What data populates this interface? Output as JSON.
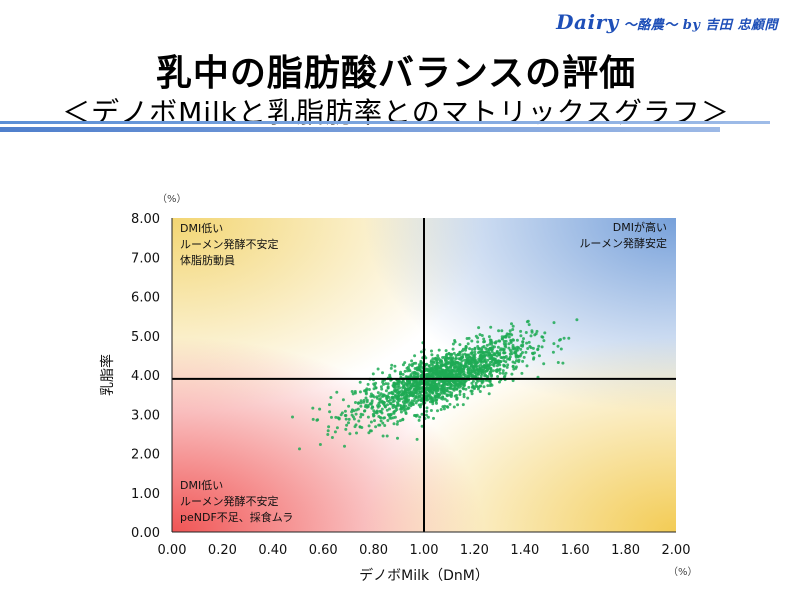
{
  "brand": {
    "main": "Dairy",
    "sub": "〜酪農〜 by 吉田 忠顧問"
  },
  "title": "乳中の脂肪酸バランスの評価",
  "subtitle": "＜デノボMilkと乳脂肪率とのマトリックスグラフ＞",
  "chart_data": {
    "type": "scatter",
    "xlabel": "デノボMilk（DnM）",
    "ylabel": "乳脂率",
    "x_unit": "（%）",
    "y_unit": "（%）",
    "xlim": [
      0,
      2.0
    ],
    "ylim": [
      0,
      8.0
    ],
    "x_ticks": [
      "0.00",
      "0.20",
      "0.40",
      "0.60",
      "0.80",
      "1.00",
      "1.20",
      "1.40",
      "1.60",
      "1.80",
      "2.00"
    ],
    "y_ticks": [
      "0.00",
      "1.00",
      "2.00",
      "3.00",
      "4.00",
      "5.00",
      "6.00",
      "7.00",
      "8.00"
    ],
    "reference_lines": {
      "x": 1.0,
      "y": 3.9
    },
    "point_color": "#1faa55",
    "quadrant_labels": {
      "top_left": [
        "DMI低い",
        "ルーメン発酵不安定",
        "体脂肪動員"
      ],
      "top_right": [
        "DMIが高い",
        "ルーメン発酵安定"
      ],
      "bottom_left": [
        "DMI低い",
        "ルーメン発酵不安定",
        "peNDF不足、採食ムラ"
      ]
    },
    "quadrant_colors": {
      "top_left": "#f2d36b",
      "top_right": "#6f9bd8",
      "bottom_left": "#ef4b4b",
      "bottom_right": "#f2c94c"
    },
    "cluster": {
      "n": 1800,
      "x_mean": 1.07,
      "x_sd": 0.17,
      "slope": 2.3,
      "intercept": 1.45,
      "y_sd": 0.33
    }
  }
}
